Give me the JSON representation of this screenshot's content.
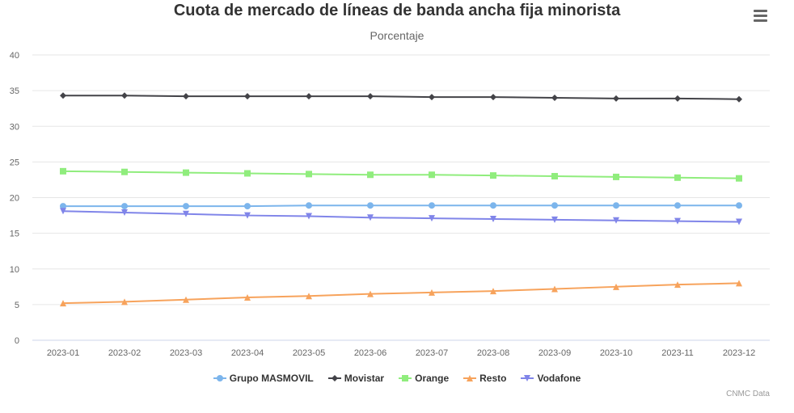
{
  "chart_data": {
    "type": "line",
    "title": "Cuota de mercado de líneas de banda ancha fija minorista",
    "subtitle": "Porcentaje",
    "xlabel": "",
    "ylabel": "",
    "x": [
      "2023-01",
      "2023-02",
      "2023-03",
      "2023-04",
      "2023-05",
      "2023-06",
      "2023-07",
      "2023-08",
      "2023-09",
      "2023-10",
      "2023-11",
      "2023-12"
    ],
    "ylim": [
      0,
      40
    ],
    "yticks": [
      0,
      5,
      10,
      15,
      20,
      25,
      30,
      35,
      40
    ],
    "grid": true,
    "legend_position": "bottom",
    "series": [
      {
        "name": "Grupo MASMOVIL",
        "color": "#7cb5ec",
        "marker": "circle",
        "values": [
          18.8,
          18.8,
          18.8,
          18.8,
          18.9,
          18.9,
          18.9,
          18.9,
          18.9,
          18.9,
          18.9,
          18.9
        ]
      },
      {
        "name": "Movistar",
        "color": "#434348",
        "marker": "diamond",
        "values": [
          34.3,
          34.3,
          34.2,
          34.2,
          34.2,
          34.2,
          34.1,
          34.1,
          34.0,
          33.9,
          33.9,
          33.8
        ]
      },
      {
        "name": "Orange",
        "color": "#90ed7d",
        "marker": "square",
        "values": [
          23.7,
          23.6,
          23.5,
          23.4,
          23.3,
          23.2,
          23.2,
          23.1,
          23.0,
          22.9,
          22.8,
          22.7
        ]
      },
      {
        "name": "Resto",
        "color": "#f7a35c",
        "marker": "triangle",
        "values": [
          5.2,
          5.4,
          5.7,
          6.0,
          6.2,
          6.5,
          6.7,
          6.9,
          7.2,
          7.5,
          7.8,
          8.0
        ]
      },
      {
        "name": "Vodafone",
        "color": "#8085e9",
        "marker": "triangle-down",
        "values": [
          18.1,
          17.9,
          17.7,
          17.5,
          17.4,
          17.2,
          17.1,
          17.0,
          16.9,
          16.8,
          16.7,
          16.6
        ]
      }
    ]
  },
  "credits": "CNMC Data",
  "menu_icon": "hamburger-menu-icon"
}
